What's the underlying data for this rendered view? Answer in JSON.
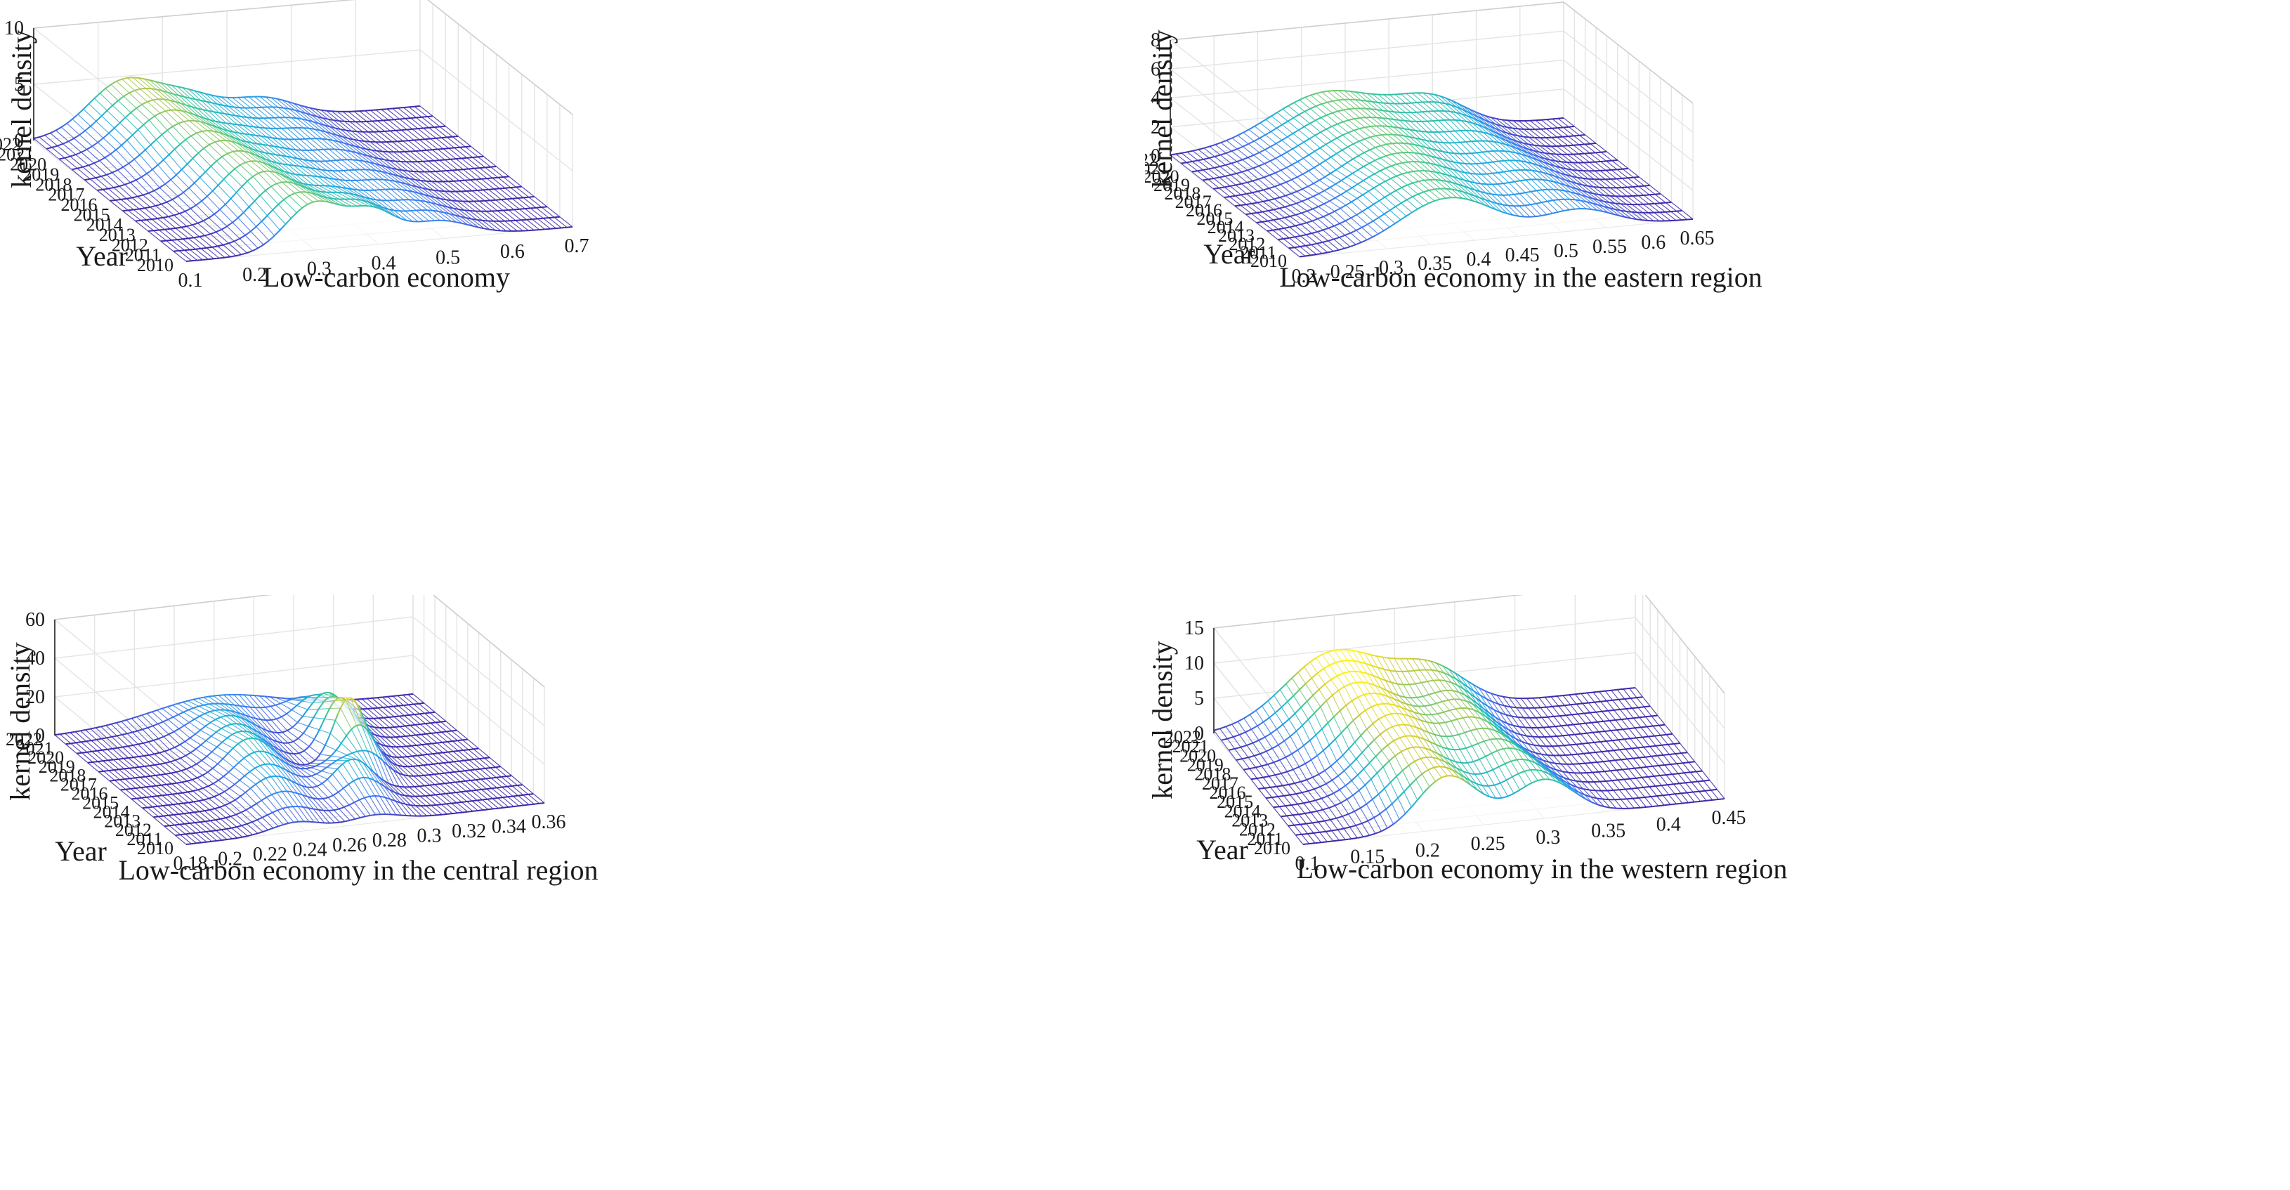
{
  "chart_data": [
    {
      "type": "surface3d",
      "title": "",
      "xlabel": "Low-carbon economy",
      "ylabel": "Year",
      "zlabel": "kernel density",
      "xlim": [
        0.1,
        0.7
      ],
      "xticks": [
        "0.1",
        "0.2",
        "0.3",
        "0.4",
        "0.5",
        "0.6",
        "0.7"
      ],
      "zlim": [
        0,
        10
      ],
      "zticks": [
        "0",
        "5",
        "10"
      ],
      "years": [
        "2010",
        "2011",
        "2012",
        "2013",
        "2014",
        "2015",
        "2016",
        "2017",
        "2018",
        "2019",
        "2020",
        "2021",
        "2022"
      ],
      "peaks": [
        {
          "year": "2010",
          "components": [
            {
              "x": 0.3,
              "height": 4.2,
              "width": 0.045
            },
            {
              "x": 0.39,
              "height": 2.6,
              "width": 0.035
            },
            {
              "x": 0.49,
              "height": 1.6,
              "width": 0.05
            }
          ]
        },
        {
          "year": "2013",
          "components": [
            {
              "x": 0.28,
              "height": 4.3,
              "width": 0.045
            },
            {
              "x": 0.38,
              "height": 2.0,
              "width": 0.04
            },
            {
              "x": 0.48,
              "height": 1.7,
              "width": 0.05
            }
          ]
        },
        {
          "year": "2016",
          "components": [
            {
              "x": 0.27,
              "height": 4.4,
              "width": 0.05
            },
            {
              "x": 0.37,
              "height": 1.8,
              "width": 0.04
            },
            {
              "x": 0.47,
              "height": 1.7,
              "width": 0.05
            }
          ]
        },
        {
          "year": "2019",
          "components": [
            {
              "x": 0.25,
              "height": 4.5,
              "width": 0.055
            },
            {
              "x": 0.36,
              "height": 1.9,
              "width": 0.045
            },
            {
              "x": 0.46,
              "height": 1.8,
              "width": 0.05
            }
          ]
        },
        {
          "year": "2022",
          "components": [
            {
              "x": 0.24,
              "height": 4.6,
              "width": 0.055
            },
            {
              "x": 0.34,
              "height": 2.2,
              "width": 0.045
            },
            {
              "x": 0.45,
              "height": 2.0,
              "width": 0.055
            }
          ]
        }
      ]
    },
    {
      "type": "surface3d",
      "title": "",
      "xlabel": "Low-carbon economy in the eastern region",
      "ylabel": "Year",
      "zlabel": "kernel density",
      "xlim": [
        0.2,
        0.65
      ],
      "xticks": [
        "0.2",
        "0.25",
        "0.3",
        "0.35",
        "0.4",
        "0.45",
        "0.5",
        "0.55",
        "0.6",
        "0.65"
      ],
      "zlim": [
        0,
        8
      ],
      "zticks": [
        "0",
        "2",
        "4",
        "6",
        "8"
      ],
      "years": [
        "2010",
        "2011",
        "2012",
        "2013",
        "2014",
        "2015",
        "2016",
        "2017",
        "2018",
        "2019",
        "2020",
        "2021",
        "2022"
      ],
      "peaks": [
        {
          "year": "2010",
          "components": [
            {
              "x": 0.37,
              "height": 3.1,
              "width": 0.055
            },
            {
              "x": 0.52,
              "height": 1.4,
              "width": 0.04
            }
          ]
        },
        {
          "year": "2013",
          "components": [
            {
              "x": 0.37,
              "height": 3.2,
              "width": 0.06
            },
            {
              "x": 0.51,
              "height": 1.6,
              "width": 0.04
            }
          ]
        },
        {
          "year": "2016",
          "components": [
            {
              "x": 0.38,
              "height": 3.3,
              "width": 0.06
            },
            {
              "x": 0.51,
              "height": 1.7,
              "width": 0.04
            }
          ]
        },
        {
          "year": "2019",
          "components": [
            {
              "x": 0.38,
              "height": 3.3,
              "width": 0.065
            },
            {
              "x": 0.5,
              "height": 1.8,
              "width": 0.04
            }
          ]
        },
        {
          "year": "2022",
          "components": [
            {
              "x": 0.38,
              "height": 3.4,
              "width": 0.065
            },
            {
              "x": 0.5,
              "height": 1.9,
              "width": 0.04
            }
          ]
        }
      ]
    },
    {
      "type": "surface3d",
      "title": "",
      "xlabel": "Low-carbon economy in the central region",
      "ylabel": "Year",
      "zlabel": "kernel density",
      "xlim": [
        0.18,
        0.36
      ],
      "xticks": [
        "0.18",
        "0.2",
        "0.22",
        "0.24",
        "0.26",
        "0.28",
        "0.3",
        "0.32",
        "0.34",
        "0.36"
      ],
      "zlim": [
        0,
        60
      ],
      "zticks": [
        "0",
        "20",
        "40",
        "60"
      ],
      "years": [
        "2010",
        "2011",
        "2012",
        "2013",
        "2014",
        "2015",
        "2016",
        "2017",
        "2018",
        "2019",
        "2020",
        "2021",
        "2022"
      ],
      "peaks": [
        {
          "year": "2010",
          "components": [
            {
              "x": 0.235,
              "height": 5,
              "width": 0.012
            },
            {
              "x": 0.275,
              "height": 4,
              "width": 0.012
            }
          ]
        },
        {
          "year": "2013",
          "components": [
            {
              "x": 0.24,
              "height": 14,
              "width": 0.012
            },
            {
              "x": 0.28,
              "height": 18,
              "width": 0.01
            }
          ]
        },
        {
          "year": "2016",
          "components": [
            {
              "x": 0.245,
              "height": 19,
              "width": 0.012
            },
            {
              "x": 0.295,
              "height": 34,
              "width": 0.008
            }
          ]
        },
        {
          "year": "2019",
          "components": [
            {
              "x": 0.25,
              "height": 16,
              "width": 0.014
            },
            {
              "x": 0.3,
              "height": 22,
              "width": 0.01
            }
          ]
        },
        {
          "year": "2022",
          "components": [
            {
              "x": 0.26,
              "height": 11,
              "width": 0.03
            }
          ]
        }
      ]
    },
    {
      "type": "surface3d",
      "title": "",
      "xlabel": "Low-carbon economy in the western region",
      "ylabel": "Year",
      "zlabel": "kernel density",
      "xlim": [
        0.1,
        0.45
      ],
      "xticks": [
        "0.1",
        "0.15",
        "0.2",
        "0.25",
        "0.3",
        "0.35",
        "0.4",
        "0.45"
      ],
      "zlim": [
        0,
        15
      ],
      "zticks": [
        "0",
        "5",
        "10",
        "15"
      ],
      "years": [
        "2010",
        "2011",
        "2012",
        "2013",
        "2014",
        "2015",
        "2016",
        "2017",
        "2018",
        "2019",
        "2020",
        "2021",
        "2022"
      ],
      "peaks": [
        {
          "year": "2010",
          "components": [
            {
              "x": 0.22,
              "height": 7.5,
              "width": 0.025
            },
            {
              "x": 0.3,
              "height": 5.5,
              "width": 0.025
            }
          ]
        },
        {
          "year": "2013",
          "components": [
            {
              "x": 0.21,
              "height": 7.8,
              "width": 0.03
            },
            {
              "x": 0.29,
              "height": 6.0,
              "width": 0.025
            }
          ]
        },
        {
          "year": "2016",
          "components": [
            {
              "x": 0.21,
              "height": 8.5,
              "width": 0.03
            },
            {
              "x": 0.28,
              "height": 6.3,
              "width": 0.025
            }
          ]
        },
        {
          "year": "2019",
          "components": [
            {
              "x": 0.2,
              "height": 9.3,
              "width": 0.035
            },
            {
              "x": 0.28,
              "height": 6.0,
              "width": 0.025
            }
          ]
        },
        {
          "year": "2022",
          "components": [
            {
              "x": 0.2,
              "height": 9.8,
              "width": 0.04
            },
            {
              "x": 0.28,
              "height": 5.6,
              "width": 0.03
            }
          ]
        }
      ]
    }
  ]
}
